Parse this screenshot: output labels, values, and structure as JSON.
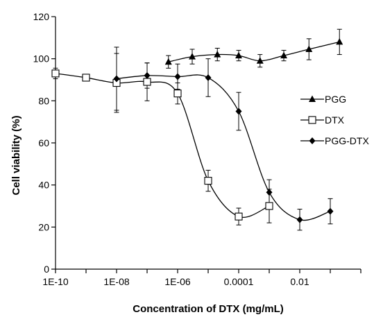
{
  "chart_data": {
    "type": "line",
    "xlabel": "Concentration of DTX (mg/mL)",
    "ylabel": "Cell viability (%)",
    "x_scale": "log",
    "xlim": [
      1e-10,
      1
    ],
    "ylim": [
      0,
      120
    ],
    "x_ticks": [
      1e-10,
      1e-08,
      1e-06,
      0.0001,
      0.01
    ],
    "x_tick_labels": [
      "1E-10",
      "1E-08",
      "1E-06",
      "0.0001",
      "0.01"
    ],
    "y_ticks": [
      0,
      20,
      40,
      60,
      80,
      100,
      120
    ],
    "y_tick_labels": [
      "0",
      "20",
      "40",
      "60",
      "80",
      "100",
      "120"
    ],
    "grid": false,
    "legend_position": "right",
    "series": [
      {
        "name": "PGG",
        "marker": "triangle",
        "color": "#000000",
        "x": [
          5e-07,
          3e-06,
          2e-05,
          0.0001,
          0.0005,
          0.003,
          0.02,
          0.2
        ],
        "y": [
          98.5,
          101,
          102,
          101.5,
          99,
          101.5,
          104.5,
          108
        ],
        "err": [
          3,
          3.5,
          3,
          2.5,
          3,
          2.5,
          5,
          6
        ]
      },
      {
        "name": "DTX",
        "marker": "square-open",
        "color": "#000000",
        "x": [
          1e-10,
          1e-09,
          1e-08,
          1e-07,
          1e-06,
          1e-05,
          0.0001,
          0.001
        ],
        "y": [
          93,
          91,
          88.5,
          89,
          83.5,
          42,
          25,
          30
        ],
        "err": [
          2.5,
          1.5,
          14,
          9,
          5,
          5,
          4,
          8
        ]
      },
      {
        "name": "PGG-DTX",
        "marker": "diamond",
        "color": "#000000",
        "x": [
          1e-08,
          1e-07,
          1e-06,
          1e-05,
          0.0001,
          0.001,
          0.01,
          0.1
        ],
        "y": [
          90.5,
          92,
          91.5,
          91,
          75,
          36.5,
          23.5,
          27.5
        ],
        "err": [
          15,
          6,
          6,
          9,
          9,
          6,
          5,
          6
        ]
      }
    ]
  }
}
